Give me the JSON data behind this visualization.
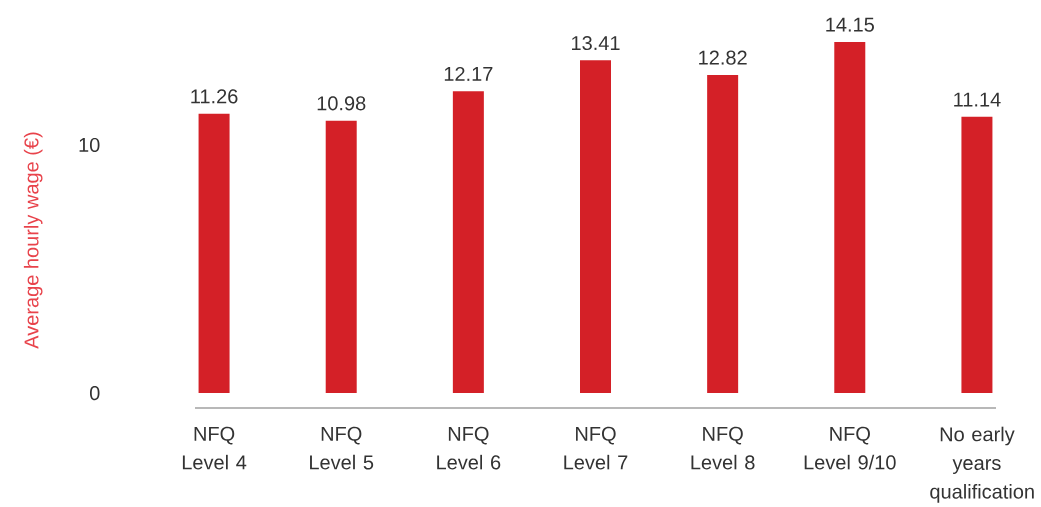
{
  "chart_data": {
    "type": "bar",
    "ylabel": "Average hourly wage (€)",
    "categories": [
      "NFQ Level 4",
      "NFQ Level 5",
      "NFQ Level 6",
      "NFQ Level 7",
      "NFQ Level 8",
      "NFQ Level 9/10",
      "No early years qualification"
    ],
    "values": [
      11.26,
      10.98,
      12.17,
      13.41,
      12.82,
      14.15,
      11.14
    ],
    "color": "#d42027",
    "ylim": [
      -0.6,
      14.15
    ],
    "yticks": [
      0,
      10
    ],
    "data_labels": true
  }
}
